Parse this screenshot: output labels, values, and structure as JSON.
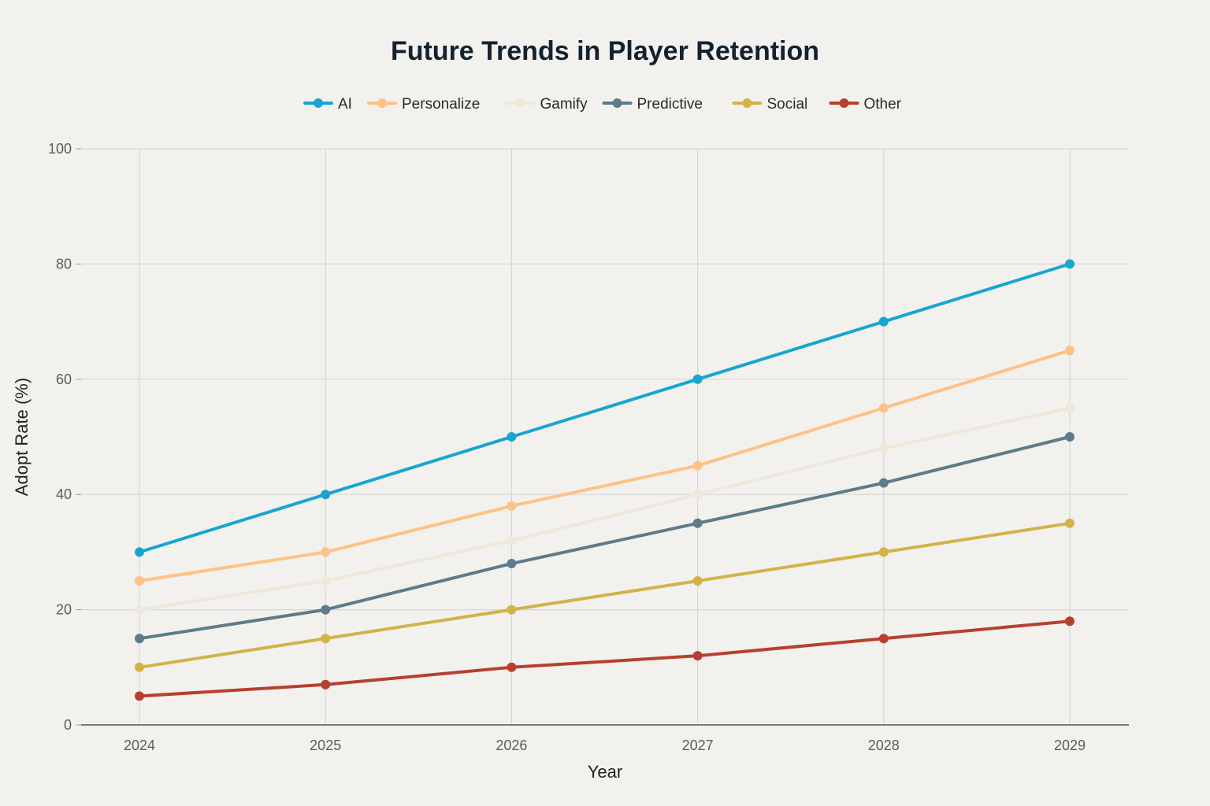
{
  "chart_data": {
    "type": "line",
    "title": "Future Trends in Player Retention",
    "xlabel": "Year",
    "ylabel": "Adopt Rate (%)",
    "x": [
      "2024",
      "2025",
      "2026",
      "2027",
      "2028",
      "2029"
    ],
    "ylim": [
      0,
      100
    ],
    "yticks": [
      "0",
      "20",
      "40",
      "60",
      "80",
      "100"
    ],
    "grid": true,
    "legend_position": "top-center",
    "series": [
      {
        "name": "AI",
        "color": "#17a6cf",
        "values": [
          30,
          40,
          50,
          60,
          70,
          80
        ]
      },
      {
        "name": "Personalize",
        "color": "#ffc185",
        "values": [
          25,
          30,
          38,
          45,
          55,
          65
        ]
      },
      {
        "name": "Gamify",
        "color": "#ece9da",
        "values": [
          20,
          25,
          32,
          40,
          48,
          55
        ]
      },
      {
        "name": "Predictive",
        "color": "#5d7b8a",
        "values": [
          15,
          20,
          28,
          35,
          42,
          50
        ]
      },
      {
        "name": "Social",
        "color": "#d3b248",
        "values": [
          10,
          15,
          20,
          25,
          30,
          35
        ]
      },
      {
        "name": "Other",
        "color": "#b6402f",
        "values": [
          5,
          7,
          10,
          12,
          15,
          18
        ]
      }
    ]
  }
}
